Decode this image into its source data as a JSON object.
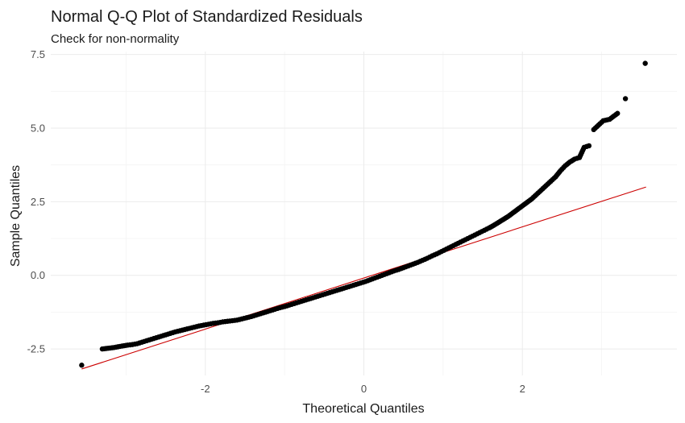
{
  "chart_data": {
    "type": "scatter",
    "title": "Normal Q-Q Plot of Standardized Residuals",
    "subtitle": "Check for non-normality",
    "xlabel": "Theoretical Quantiles",
    "ylabel": "Sample Quantiles",
    "xlim": [
      -3.95,
      3.95
    ],
    "ylim": [
      -3.4,
      7.6
    ],
    "x_ticks": [
      -2,
      0,
      2
    ],
    "x_tick_labels": [
      "-2",
      "0",
      "2"
    ],
    "y_ticks": [
      -2.5,
      0,
      2.5,
      5,
      7.5
    ],
    "y_tick_labels": [
      "-2.5",
      "0.0",
      "2.5",
      "5.0",
      "7.5"
    ],
    "grid": true,
    "reference_line": {
      "color": "#cc0000",
      "x": [
        -3.56,
        3.56
      ],
      "y": [
        -3.18,
        3.0
      ]
    },
    "point_color": "#000000",
    "points": [
      [
        -3.56,
        -3.05
      ],
      [
        -3.3,
        -2.5
      ],
      [
        -3.15,
        -2.45
      ],
      [
        -3.05,
        -2.4
      ],
      [
        -2.98,
        -2.37
      ],
      [
        -2.92,
        -2.35
      ],
      [
        -2.86,
        -2.32
      ],
      [
        -2.8,
        -2.27
      ],
      [
        -2.74,
        -2.22
      ],
      [
        -2.68,
        -2.17
      ],
      [
        -2.62,
        -2.12
      ],
      [
        -2.56,
        -2.07
      ],
      [
        -2.5,
        -2.02
      ],
      [
        -2.44,
        -1.97
      ],
      [
        -2.38,
        -1.92
      ],
      [
        -2.32,
        -1.88
      ],
      [
        -2.26,
        -1.84
      ],
      [
        -2.2,
        -1.8
      ],
      [
        -2.14,
        -1.76
      ],
      [
        -2.08,
        -1.72
      ],
      [
        -2.02,
        -1.69
      ],
      [
        -1.96,
        -1.66
      ],
      [
        -1.9,
        -1.63
      ],
      [
        -1.84,
        -1.61
      ],
      [
        -1.78,
        -1.58
      ],
      [
        -1.72,
        -1.56
      ],
      [
        -1.66,
        -1.54
      ],
      [
        -1.6,
        -1.52
      ],
      [
        -1.54,
        -1.48
      ],
      [
        -1.48,
        -1.44
      ],
      [
        -1.42,
        -1.4
      ],
      [
        -1.36,
        -1.35
      ],
      [
        -1.3,
        -1.3
      ],
      [
        -1.24,
        -1.25
      ],
      [
        -1.18,
        -1.2
      ],
      [
        -1.12,
        -1.15
      ],
      [
        -1.06,
        -1.1
      ],
      [
        -1.0,
        -1.06
      ],
      [
        -0.94,
        -1.01
      ],
      [
        -0.88,
        -0.96
      ],
      [
        -0.82,
        -0.91
      ],
      [
        -0.76,
        -0.86
      ],
      [
        -0.7,
        -0.81
      ],
      [
        -0.64,
        -0.76
      ],
      [
        -0.58,
        -0.71
      ],
      [
        -0.52,
        -0.66
      ],
      [
        -0.46,
        -0.61
      ],
      [
        -0.4,
        -0.56
      ],
      [
        -0.34,
        -0.51
      ],
      [
        -0.28,
        -0.46
      ],
      [
        -0.22,
        -0.41
      ],
      [
        -0.16,
        -0.36
      ],
      [
        -0.1,
        -0.31
      ],
      [
        -0.04,
        -0.26
      ],
      [
        0.02,
        -0.21
      ],
      [
        0.08,
        -0.15
      ],
      [
        0.14,
        -0.09
      ],
      [
        0.2,
        -0.03
      ],
      [
        0.26,
        0.03
      ],
      [
        0.32,
        0.09
      ],
      [
        0.38,
        0.15
      ],
      [
        0.44,
        0.2
      ],
      [
        0.5,
        0.26
      ],
      [
        0.56,
        0.32
      ],
      [
        0.62,
        0.38
      ],
      [
        0.68,
        0.44
      ],
      [
        0.74,
        0.51
      ],
      [
        0.8,
        0.58
      ],
      [
        0.86,
        0.66
      ],
      [
        0.92,
        0.73
      ],
      [
        0.98,
        0.81
      ],
      [
        1.04,
        0.89
      ],
      [
        1.1,
        0.97
      ],
      [
        1.16,
        1.05
      ],
      [
        1.22,
        1.13
      ],
      [
        1.28,
        1.21
      ],
      [
        1.34,
        1.29
      ],
      [
        1.4,
        1.37
      ],
      [
        1.46,
        1.45
      ],
      [
        1.52,
        1.53
      ],
      [
        1.58,
        1.61
      ],
      [
        1.64,
        1.7
      ],
      [
        1.7,
        1.8
      ],
      [
        1.76,
        1.9
      ],
      [
        1.82,
        2.0
      ],
      [
        1.88,
        2.12
      ],
      [
        1.94,
        2.24
      ],
      [
        2.0,
        2.36
      ],
      [
        2.06,
        2.48
      ],
      [
        2.12,
        2.6
      ],
      [
        2.18,
        2.75
      ],
      [
        2.24,
        2.9
      ],
      [
        2.3,
        3.05
      ],
      [
        2.36,
        3.2
      ],
      [
        2.42,
        3.35
      ],
      [
        2.48,
        3.55
      ],
      [
        2.54,
        3.72
      ],
      [
        2.6,
        3.85
      ],
      [
        2.66,
        3.95
      ],
      [
        2.72,
        4.0
      ],
      [
        2.78,
        4.35
      ],
      [
        2.84,
        4.4
      ],
      [
        2.9,
        4.95
      ],
      [
        2.96,
        5.1
      ],
      [
        3.02,
        5.25
      ],
      [
        3.1,
        5.3
      ],
      [
        3.2,
        5.5
      ],
      [
        3.3,
        6.0
      ],
      [
        3.55,
        7.2
      ]
    ]
  }
}
